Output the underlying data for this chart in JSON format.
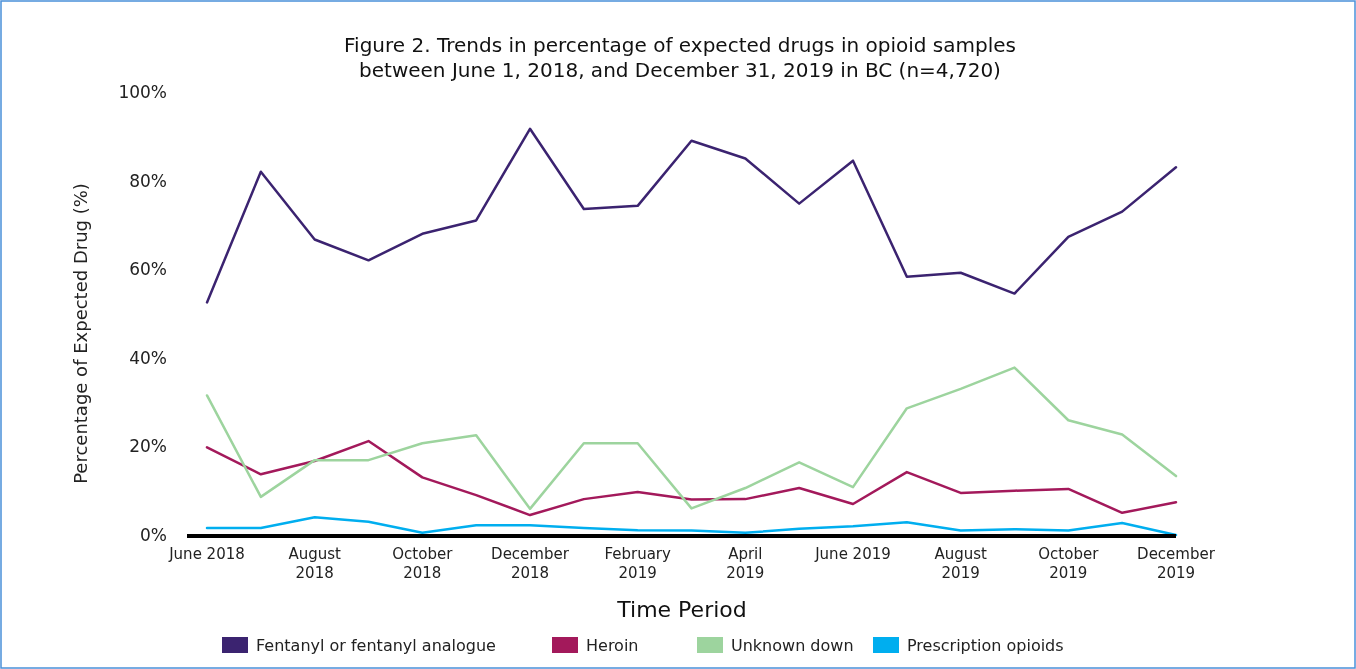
{
  "chart_data": {
    "type": "line",
    "title": "Figure 2. Trends in percentage of expected drugs in opioid samples between June 1, 2018, and December 31, 2019 in BC (n=4,720)",
    "xlabel": "Time Period",
    "ylabel": "Percentage of Expected Drug (%)",
    "categories": [
      "June 2018",
      null,
      "August 2018",
      null,
      "October 2018",
      null,
      "December 2018",
      null,
      "February 2019",
      null,
      "April 2019",
      null,
      "June 2019",
      null,
      "August 2019",
      null,
      "October 2019",
      null,
      "December 2019"
    ],
    "ylim": [
      0,
      100
    ],
    "yticks": [
      {
        "value": 0,
        "label": "0%"
      },
      {
        "value": 20,
        "label": "20%"
      },
      {
        "value": 40,
        "label": "40%"
      },
      {
        "value": 60,
        "label": "60%"
      },
      {
        "value": 80,
        "label": "80%"
      },
      {
        "value": 100,
        "label": "100%"
      }
    ],
    "grid": false,
    "legend": "bottom",
    "marker": "none",
    "line_style": "solid",
    "series": [
      {
        "name": "Fentanyl or fentanyl analogue",
        "color": "#3b2370",
        "values": [
          52.5,
          82,
          66.7,
          62,
          68,
          71,
          91.7,
          73.6,
          74.3,
          89,
          85,
          74.8,
          84.5,
          58.3,
          59.2,
          54.5,
          67.3,
          73,
          83
        ]
      },
      {
        "name": "Heroin",
        "color": "#a3195b",
        "values": [
          19.8,
          13.7,
          16.7,
          21.2,
          13,
          9,
          4.5,
          8.1,
          9.7,
          8,
          8.1,
          10.6,
          7,
          14.2,
          9.5,
          10,
          10.4,
          5,
          7.4
        ]
      },
      {
        "name": "Unknown down",
        "color": "#9dd49e",
        "values": [
          31.5,
          8.6,
          16.9,
          16.9,
          20.7,
          22.5,
          5.9,
          20.7,
          20.7,
          6,
          10.6,
          16.4,
          10.8,
          28.6,
          33,
          37.8,
          25.9,
          22.7,
          13.3
        ]
      },
      {
        "name": "Prescription opioids",
        "color": "#00aeef",
        "values": [
          1.6,
          1.6,
          4,
          3,
          0.5,
          2.2,
          2.2,
          1.6,
          1.1,
          1,
          0.5,
          1.4,
          2,
          2.9,
          1,
          1.3,
          1,
          2.7,
          0
        ]
      }
    ]
  }
}
